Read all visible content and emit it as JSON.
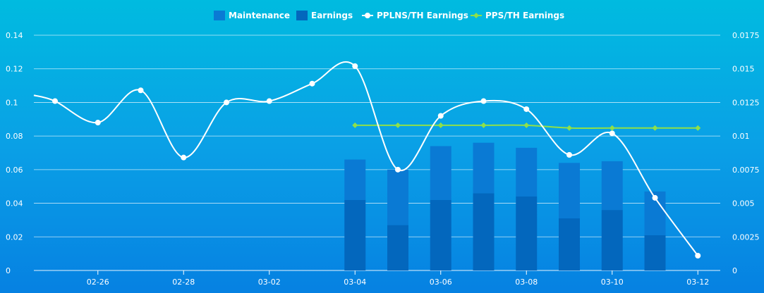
{
  "chart_data": {
    "type": "bar+line",
    "legend_position": "top-center",
    "legend": [
      {
        "key": "maintenance",
        "label": "Maintenance",
        "marker": "square"
      },
      {
        "key": "earnings",
        "label": "Earnings",
        "marker": "square"
      },
      {
        "key": "pplns",
        "label": "PPLNS/TH Earnings",
        "marker": "line-circle"
      },
      {
        "key": "pps",
        "label": "PPS/TH Earnings",
        "marker": "line-diamond"
      }
    ],
    "x_tick_labels": [
      "02-26",
      "02-28",
      "03-02",
      "03-04",
      "03-06",
      "03-08",
      "03-10",
      "03-12"
    ],
    "x_dates": [
      "02-25",
      "02-26",
      "02-27",
      "02-28",
      "03-01",
      "03-02",
      "03-03",
      "03-04",
      "03-05",
      "03-06",
      "03-07",
      "03-08",
      "03-09",
      "03-10",
      "03-11",
      "03-12"
    ],
    "left_axis": {
      "min": 0,
      "max": 0.14,
      "tick_labels": [
        "0",
        "0.02",
        "0.04",
        "0.06",
        "0.08",
        "0.1",
        "0.12",
        "0.14"
      ],
      "tick_values": [
        0,
        0.02,
        0.04,
        0.06,
        0.08,
        0.1,
        0.12,
        0.14
      ]
    },
    "right_axis": {
      "min": 0,
      "max": 0.0175,
      "tick_labels": [
        "0",
        "0.0025",
        "0.005",
        "0.0075",
        "0.01",
        "0.0125",
        "0.015",
        "0.0175"
      ],
      "tick_values": [
        0,
        0.0025,
        0.005,
        0.0075,
        0.01,
        0.0125,
        0.015,
        0.0175
      ]
    },
    "grid": true,
    "bar_series": {
      "dates": [
        "03-04",
        "03-05",
        "03-06",
        "03-07",
        "03-08",
        "03-09",
        "03-10",
        "03-11"
      ],
      "earnings": [
        0.042,
        0.027,
        0.042,
        0.046,
        0.044,
        0.031,
        0.036,
        0.021
      ],
      "maintenance": [
        0.024,
        0.033,
        0.032,
        0.03,
        0.029,
        0.033,
        0.029,
        0.026
      ]
    },
    "pplns_series": {
      "dates": [
        "02-25",
        "02-26",
        "02-27",
        "02-28",
        "03-01",
        "03-02",
        "03-03",
        "03-04",
        "03-05",
        "03-06",
        "03-07",
        "03-08",
        "03-09",
        "03-10",
        "03-11",
        "03-12"
      ],
      "values": [
        0.0126,
        0.011,
        0.0134,
        0.0084,
        0.0125,
        0.0126,
        0.0139,
        0.0152,
        0.0075,
        0.0115,
        0.0126,
        0.012,
        0.0086,
        0.0102,
        0.0054,
        0.0011
      ]
    },
    "pps_series": {
      "dates": [
        "03-04",
        "03-05",
        "03-06",
        "03-07",
        "03-08",
        "03-09",
        "03-10",
        "03-11",
        "03-12"
      ],
      "values": [
        0.0108,
        0.0108,
        0.0108,
        0.0108,
        0.0108,
        0.0106,
        0.0106,
        0.0106,
        0.0106
      ]
    },
    "colors": {
      "maintenance": "#0a7ad4",
      "earnings": "#0367bd",
      "pplns_line": "#ffffff",
      "pps_line": "#8ee04a",
      "grid": "#ffffff",
      "text": "#ffffff"
    }
  }
}
